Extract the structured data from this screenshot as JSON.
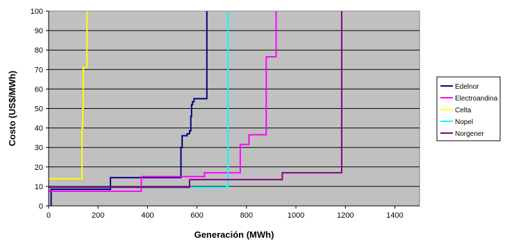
{
  "chart_data": {
    "type": "line",
    "title": "",
    "xlabel": "Generación (MWh)",
    "ylabel": "Costo (US$/MWh)",
    "xlim": [
      0,
      1500
    ],
    "ylim": [
      0,
      100
    ],
    "x_ticks": [
      0,
      200,
      400,
      600,
      800,
      1000,
      1200,
      1400
    ],
    "y_ticks": [
      0,
      10,
      20,
      30,
      40,
      50,
      60,
      70,
      80,
      90,
      100
    ],
    "x_tick_labels": [
      "0",
      "200",
      "400",
      "600",
      "800",
      "1000",
      "1200",
      "1400"
    ],
    "y_tick_labels": [
      "0",
      "10",
      "20",
      "30",
      "40",
      "50",
      "60",
      "70",
      "80",
      "90",
      "100"
    ],
    "grid": "horizontal",
    "legend_position": "right",
    "plot_background": "#c0c0c0",
    "series": [
      {
        "name": "Edelnor",
        "color": "#000080",
        "points": [
          [
            10,
            0
          ],
          [
            10,
            8.5
          ],
          [
            250,
            8.5
          ],
          [
            250,
            14.5
          ],
          [
            535,
            14.5
          ],
          [
            535,
            30
          ],
          [
            540,
            30
          ],
          [
            540,
            36
          ],
          [
            560,
            36
          ],
          [
            560,
            37
          ],
          [
            570,
            37
          ],
          [
            570,
            38.5
          ],
          [
            575,
            38.5
          ],
          [
            575,
            46
          ],
          [
            578,
            46
          ],
          [
            578,
            52
          ],
          [
            582,
            52
          ],
          [
            582,
            53.5
          ],
          [
            588,
            53.5
          ],
          [
            588,
            55
          ],
          [
            640,
            55
          ],
          [
            640,
            100
          ]
        ]
      },
      {
        "name": "Electroandina",
        "color": "#ff00ff",
        "points": [
          [
            0,
            7.5
          ],
          [
            375,
            7.5
          ],
          [
            375,
            15
          ],
          [
            630,
            15
          ],
          [
            630,
            17
          ],
          [
            775,
            17
          ],
          [
            775,
            31.5
          ],
          [
            810,
            31.5
          ],
          [
            810,
            36.5
          ],
          [
            880,
            36.5
          ],
          [
            880,
            76.5
          ],
          [
            920,
            76.5
          ],
          [
            920,
            100
          ]
        ]
      },
      {
        "name": "Celta",
        "color": "#ffff00",
        "points": [
          [
            0,
            14
          ],
          [
            135,
            14
          ],
          [
            135,
            40
          ],
          [
            138,
            40
          ],
          [
            138,
            50
          ],
          [
            140,
            50
          ],
          [
            140,
            71
          ],
          [
            155,
            71
          ],
          [
            155,
            100
          ]
        ]
      },
      {
        "name": "Nopel",
        "color": "#00ffff",
        "points": [
          [
            0,
            9.5
          ],
          [
            720,
            9.5
          ],
          [
            720,
            10
          ],
          [
            725,
            10
          ],
          [
            725,
            100
          ]
        ]
      },
      {
        "name": "Norgener",
        "color": "#800080",
        "points": [
          [
            0,
            9.5
          ],
          [
            570,
            9.5
          ],
          [
            570,
            13.5
          ],
          [
            945,
            13.5
          ],
          [
            945,
            17
          ],
          [
            1185,
            17
          ],
          [
            1185,
            100
          ]
        ]
      }
    ]
  }
}
